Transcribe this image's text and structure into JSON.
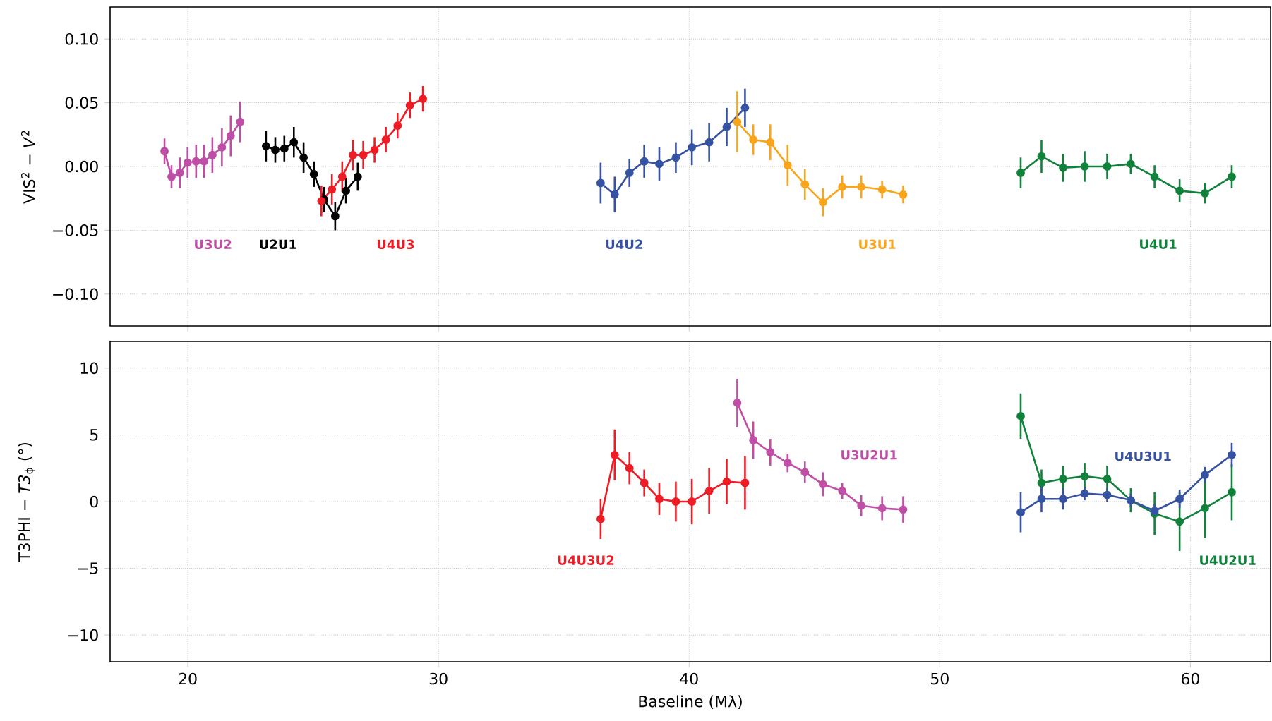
{
  "chart_data": [
    {
      "type": "line",
      "ylabel": "VIS$^{2}$ − *V*$^{2}$",
      "xlim": [
        16.9,
        63.2
      ],
      "ylim": [
        -0.125,
        0.125
      ],
      "xticks": [
        20,
        30,
        40,
        50,
        60
      ],
      "yticks": [
        {
          "value": -0.1,
          "label": "−0.10"
        },
        {
          "value": -0.05,
          "label": "−0.05"
        },
        {
          "value": 0,
          "label": "0.00"
        },
        {
          "value": 0.05,
          "label": "0.05"
        },
        {
          "value": 0.1,
          "label": "0.10"
        }
      ],
      "tick_labels": "y",
      "grid": true,
      "marker": "circle",
      "line_style": "solid",
      "series": [
        {
          "name": "U3U2",
          "color": "#bf4fa6",
          "x": [
            19.07,
            19.35,
            19.68,
            19.99,
            20.33,
            20.65,
            20.98,
            21.36,
            21.71,
            22.09
          ],
          "values": [
            0.012,
            -0.008,
            -0.005,
            0.003,
            0.004,
            0.004,
            0.009,
            0.015,
            0.024,
            0.035
          ],
          "errors": [
            0.01,
            0.009,
            0.012,
            0.012,
            0.013,
            0.013,
            0.014,
            0.015,
            0.016,
            0.016
          ]
        },
        {
          "name": "U2U1",
          "color": "#000000",
          "x": [
            23.12,
            23.49,
            23.85,
            24.23,
            24.62,
            25.03,
            25.44,
            25.88,
            26.31,
            26.78
          ],
          "values": [
            0.016,
            0.013,
            0.014,
            0.019,
            0.007,
            -0.006,
            -0.026,
            -0.039,
            -0.019,
            -0.008
          ],
          "errors": [
            0.012,
            0.01,
            0.01,
            0.012,
            0.012,
            0.01,
            0.01,
            0.011,
            0.01,
            0.011
          ]
        },
        {
          "name": "U4U3",
          "color": "#ee1c25",
          "x": [
            25.33,
            25.75,
            26.16,
            26.59,
            27.0,
            27.45,
            27.9,
            28.37,
            28.86,
            29.38
          ],
          "values": [
            -0.027,
            -0.018,
            -0.008,
            0.009,
            0.009,
            0.013,
            0.021,
            0.032,
            0.048,
            0.053
          ],
          "errors": [
            0.012,
            0.012,
            0.012,
            0.012,
            0.011,
            0.01,
            0.01,
            0.01,
            0.01,
            0.01
          ]
        },
        {
          "name": "U4U2",
          "color": "#3652a3",
          "x": [
            36.47,
            37.03,
            37.62,
            38.21,
            38.81,
            39.47,
            40.11,
            40.8,
            41.5,
            42.23
          ],
          "values": [
            -0.013,
            -0.022,
            -0.005,
            0.004,
            0.002,
            0.007,
            0.015,
            0.019,
            0.031,
            0.046
          ],
          "errors": [
            0.016,
            0.014,
            0.011,
            0.013,
            0.013,
            0.012,
            0.014,
            0.015,
            0.015,
            0.015
          ]
        },
        {
          "name": "U3U1",
          "color": "#f8a51c",
          "x": [
            41.92,
            42.56,
            43.24,
            43.93,
            44.62,
            45.34,
            46.11,
            46.87,
            47.7,
            48.54
          ],
          "values": [
            0.035,
            0.021,
            0.019,
            0.001,
            -0.014,
            -0.028,
            -0.016,
            -0.016,
            -0.018,
            -0.022
          ],
          "errors": [
            0.024,
            0.012,
            0.014,
            0.016,
            0.012,
            0.011,
            0.009,
            0.009,
            0.007,
            0.007
          ]
        },
        {
          "name": "U4U1",
          "color": "#11823b",
          "x": [
            53.23,
            54.06,
            54.92,
            55.78,
            56.68,
            57.62,
            58.57,
            59.57,
            60.58,
            61.65
          ],
          "values": [
            -0.005,
            0.008,
            -0.001,
            0.0,
            0.0,
            0.002,
            -0.008,
            -0.019,
            -0.021,
            -0.008
          ],
          "errors": [
            0.012,
            0.013,
            0.011,
            0.012,
            0.01,
            0.008,
            0.009,
            0.009,
            0.008,
            0.009
          ]
        }
      ]
    },
    {
      "type": "line",
      "xlabel": "Baseline (Mλ)",
      "ylabel": "T3PHI − *T3*$_{ϕ}$ (°)",
      "xlim": [
        16.9,
        63.2
      ],
      "ylim": [
        -12,
        12
      ],
      "xticks": [
        20,
        30,
        40,
        50,
        60
      ],
      "yticks": [
        {
          "value": -10,
          "label": "−10"
        },
        {
          "value": -5,
          "label": "−5"
        },
        0,
        5,
        10
      ],
      "grid": true,
      "marker": "circle",
      "line_style": "solid",
      "series": [
        {
          "name": "U4U3U2",
          "color": "#ee1c25",
          "x": [
            36.47,
            37.03,
            37.62,
            38.21,
            38.81,
            39.47,
            40.11,
            40.8,
            41.5,
            42.23
          ],
          "values": [
            -1.3,
            3.5,
            2.5,
            1.4,
            0.2,
            0.0,
            0.0,
            0.8,
            1.5,
            1.4
          ],
          "errors": [
            1.5,
            1.9,
            1.2,
            1.0,
            1.2,
            1.5,
            1.7,
            1.7,
            1.7,
            2.0
          ]
        },
        {
          "name": "U3U2U1",
          "color": "#bf4fa6",
          "x": [
            41.92,
            42.56,
            43.24,
            43.93,
            44.62,
            45.34,
            46.11,
            46.87,
            47.7,
            48.54
          ],
          "values": [
            7.4,
            4.6,
            3.7,
            2.9,
            2.2,
            1.3,
            0.8,
            -0.3,
            -0.5,
            -0.6
          ],
          "errors": [
            1.8,
            1.4,
            1.0,
            0.7,
            0.8,
            0.9,
            0.6,
            0.8,
            0.9,
            1.0
          ]
        },
        {
          "name": "U4U2U1",
          "color": "#11823b",
          "x": [
            53.23,
            54.06,
            54.92,
            55.78,
            56.68,
            57.62,
            58.57,
            59.57,
            60.58,
            61.65
          ],
          "values": [
            6.4,
            1.4,
            1.7,
            1.9,
            1.7,
            0.1,
            -0.9,
            -1.5,
            -0.5,
            0.7
          ],
          "errors": [
            1.7,
            1.0,
            1.0,
            1.0,
            1.0,
            0.9,
            1.6,
            2.2,
            2.2,
            2.1
          ]
        },
        {
          "name": "U4U3U1",
          "color": "#3652a3",
          "x": [
            53.23,
            54.06,
            54.92,
            55.78,
            56.68,
            57.62,
            58.57,
            59.57,
            60.58,
            61.65
          ],
          "values": [
            -0.8,
            0.2,
            0.2,
            0.6,
            0.5,
            0.1,
            -0.7,
            0.2,
            2.0,
            3.5
          ],
          "errors": [
            1.5,
            1.0,
            0.8,
            0.5,
            0.5,
            0.5,
            0.5,
            0.7,
            0.6,
            0.9
          ]
        }
      ]
    }
  ]
}
